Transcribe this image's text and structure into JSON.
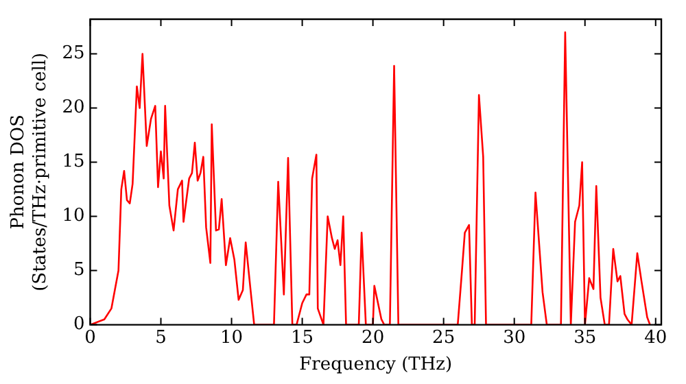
{
  "chart_data": {
    "type": "line",
    "xlabel": "Frequency (THz)",
    "ylabel": "Phonon DOS\n(States/THz·primitive cell)",
    "xlim": [
      0,
      40.4
    ],
    "ylim": [
      0,
      28.2
    ],
    "xticks": [
      0,
      5,
      10,
      15,
      20,
      25,
      30,
      35,
      40
    ],
    "yticks": [
      0,
      5,
      10,
      15,
      20,
      25
    ],
    "grid": false,
    "legend": false,
    "marker": "none",
    "line_style": "solid",
    "series": [
      {
        "color": "#ff0000",
        "x": [
          0,
          1.0,
          1.5,
          2.0,
          2.2,
          2.4,
          2.6,
          2.8,
          3.0,
          3.3,
          3.5,
          3.7,
          4.0,
          4.3,
          4.6,
          4.8,
          5.0,
          5.2,
          5.3,
          5.6,
          5.9,
          6.2,
          6.5,
          6.6,
          7.0,
          7.2,
          7.4,
          7.6,
          7.8,
          8.0,
          8.2,
          8.5,
          8.6,
          8.9,
          9.1,
          9.3,
          9.6,
          9.9,
          10.2,
          10.5,
          10.8,
          11.0,
          11.4,
          11.6,
          13.0,
          13.3,
          13.7,
          14.0,
          14.3,
          14.6,
          15.0,
          15.3,
          15.5,
          15.7,
          16.0,
          16.1,
          16.5,
          16.8,
          17.1,
          17.3,
          17.5,
          17.7,
          17.9,
          18.1,
          19.0,
          19.2,
          19.5,
          20.0,
          20.1,
          20.6,
          20.8,
          21.2,
          21.5,
          21.8,
          26.0,
          26.3,
          26.5,
          26.8,
          27.0,
          27.2,
          27.5,
          27.8,
          28.0,
          31.2,
          31.5,
          32.0,
          32.3,
          33.3,
          33.6,
          34.0,
          34.3,
          34.6,
          34.8,
          35.0,
          35.3,
          35.6,
          35.8,
          36.1,
          36.4,
          36.7,
          37.0,
          37.3,
          37.5,
          37.8,
          38.0,
          38.3,
          38.7,
          39.0,
          39.4,
          39.6
        ],
        "values": [
          0,
          0.5,
          1.5,
          5,
          12.5,
          14.2,
          11.5,
          11.2,
          13,
          22,
          20,
          25,
          16.5,
          19,
          20.2,
          12.7,
          16,
          13.5,
          20.2,
          11,
          8.7,
          12.5,
          13.3,
          9.5,
          13.5,
          14,
          16.8,
          13.3,
          14,
          15.5,
          9,
          5.7,
          18.5,
          8.7,
          8.8,
          11.6,
          5.5,
          8,
          6,
          2.3,
          3.2,
          7.6,
          2.5,
          0,
          0,
          13.2,
          2.8,
          15.4,
          0,
          0,
          2,
          2.8,
          2.8,
          13.5,
          15.7,
          1.5,
          0,
          10,
          8,
          7,
          7.8,
          5.5,
          10,
          0,
          0,
          8.5,
          0,
          0,
          3.6,
          0.5,
          0,
          0,
          23.9,
          0,
          0,
          5,
          8.5,
          9.2,
          0,
          0,
          21.2,
          15.5,
          0,
          0,
          12.2,
          3,
          0,
          0,
          27,
          0,
          9.5,
          11,
          15,
          0,
          4.3,
          3.3,
          12.8,
          2.5,
          0,
          0,
          7,
          4,
          4.5,
          1,
          0.5,
          0,
          6.6,
          4,
          0.7,
          0
        ]
      }
    ]
  }
}
